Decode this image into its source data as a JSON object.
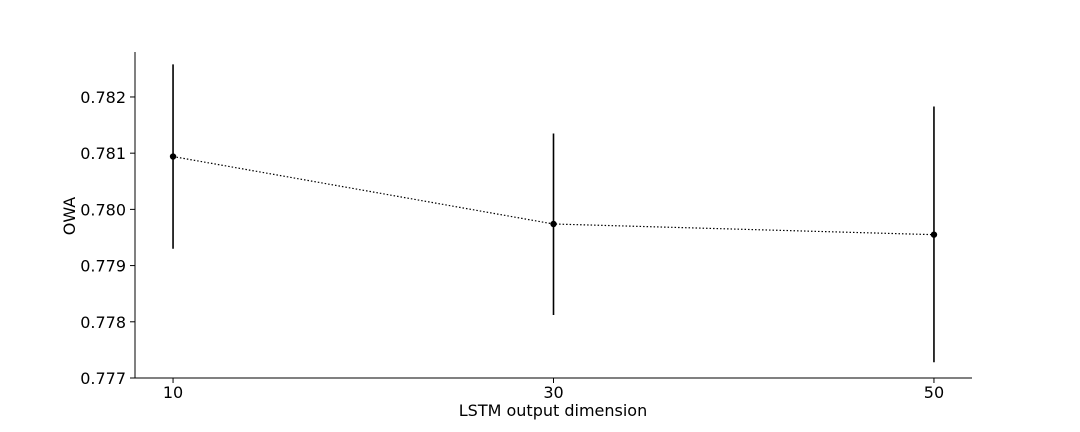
{
  "chart_data": {
    "type": "line",
    "title": "",
    "xlabel": "LSTM output dimension",
    "ylabel": "OWA",
    "x": [
      10,
      30,
      50
    ],
    "x_tick_labels": [
      "10",
      "30",
      "50"
    ],
    "xlim": [
      8,
      52
    ],
    "ylim": [
      0.777,
      0.7828
    ],
    "y_ticks": [
      0.777,
      0.778,
      0.779,
      0.78,
      0.781,
      0.782
    ],
    "y_tick_labels": [
      "0.777",
      "0.778",
      "0.779",
      "0.780",
      "0.781",
      "0.782"
    ],
    "series": [
      {
        "values": [
          0.78094,
          0.77974,
          0.77955
        ],
        "err_low": [
          0.7793,
          0.77812,
          0.77728
        ],
        "err_high": [
          0.78258,
          0.78135,
          0.78183
        ],
        "line_style": "dotted",
        "color": "#000000"
      }
    ],
    "grid": false,
    "legend": "none"
  }
}
